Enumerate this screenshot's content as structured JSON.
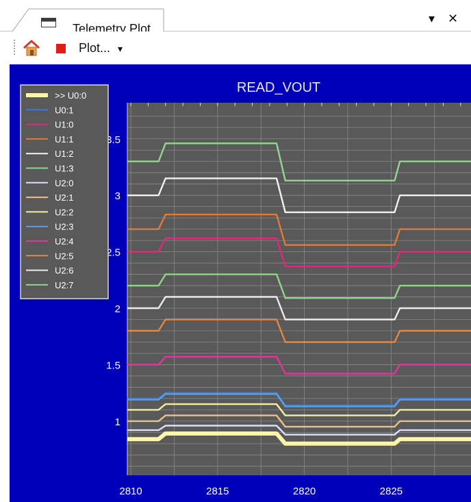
{
  "window": {
    "tab_title": "Telemetry Plot",
    "dropdown_glyph": "▾",
    "close_glyph": "✕",
    "tab_icon": "plot-window-icon"
  },
  "toolbar": {
    "home_icon": "home-icon",
    "stop_icon": "stop-icon",
    "plot_menu_label": "Plot...",
    "plot_menu_arrow": "▾"
  },
  "colors": {
    "background": "#0000bb",
    "plot_bg": "#595959",
    "legend_bg": "#595959"
  },
  "chart_data": {
    "type": "line",
    "title": "READ_VOUT",
    "xlabel": "",
    "ylabel": "",
    "xlim": [
      2809.8,
      2829.6
    ],
    "ylim": [
      0.52,
      3.82
    ],
    "x_ticks": [
      2810,
      2815,
      2820,
      2825
    ],
    "y_ticks": [
      1,
      1.5,
      2,
      2.5,
      3,
      3.5
    ],
    "y_tick_labels": [
      "1",
      "1.5",
      "2",
      "2.5",
      "3",
      "3.5"
    ],
    "grid": true,
    "legend_position": "top-left",
    "series": [
      {
        "name": ">> U0:0",
        "color": "#fff5a8",
        "base": 0.84,
        "high": 0.89,
        "low": 0.8,
        "selected": true
      },
      {
        "name": "U0:1",
        "color": "#3c78d8",
        "base": 1.2,
        "high": 1.25,
        "low": 1.14
      },
      {
        "name": "U1:0",
        "color": "#e0287f",
        "base": 2.5,
        "high": 2.62,
        "low": 2.37
      },
      {
        "name": "U1:1",
        "color": "#e07b39",
        "base": 2.7,
        "high": 2.83,
        "low": 2.56
      },
      {
        "name": "U1:2",
        "color": "#f2f2f2",
        "base": 3.0,
        "high": 3.15,
        "low": 2.85
      },
      {
        "name": "U1:3",
        "color": "#93d68f",
        "base": 3.3,
        "high": 3.46,
        "low": 3.13
      },
      {
        "name": "U2:0",
        "color": "#dde0ff",
        "base": 0.92,
        "high": 0.96,
        "low": 0.88
      },
      {
        "name": "U2:1",
        "color": "#f0c088",
        "base": 1.0,
        "high": 1.05,
        "low": 0.95
      },
      {
        "name": "U2:2",
        "color": "#f5f0a0",
        "base": 1.1,
        "high": 1.15,
        "low": 1.05
      },
      {
        "name": "U2:3",
        "color": "#5aa0e6",
        "base": 1.19,
        "high": 1.24,
        "low": 1.13
      },
      {
        "name": "U2:4",
        "color": "#e8339a",
        "base": 1.5,
        "high": 1.57,
        "low": 1.42
      },
      {
        "name": "U2:5",
        "color": "#e6873f",
        "base": 1.8,
        "high": 1.9,
        "low": 1.7
      },
      {
        "name": "U2:6",
        "color": "#ececec",
        "base": 2.0,
        "high": 2.1,
        "low": 1.9
      },
      {
        "name": "U2:7",
        "color": "#8fd68a",
        "base": 2.2,
        "high": 2.3,
        "low": 2.09
      }
    ],
    "step_profile": {
      "x": [
        2809.8,
        2811.6,
        2812.0,
        2818.4,
        2818.9,
        2825.2,
        2825.5,
        2829.6
      ],
      "level": [
        "base",
        "base",
        "high",
        "high",
        "low",
        "low",
        "base",
        "base"
      ]
    }
  }
}
